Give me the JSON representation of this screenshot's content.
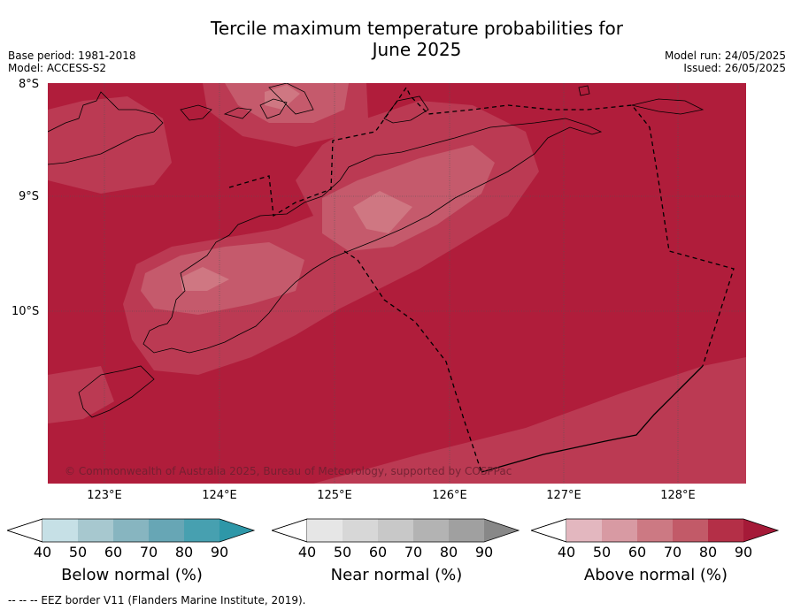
{
  "title_line1": "Tercile maximum temperature probabilities for",
  "title_line2": "June 2025",
  "base_period": "Base period: 1981-2018",
  "model": "Model: ACCESS-S2",
  "model_run": "Model run: 24/05/2025",
  "issued": "Issued: 26/05/2025",
  "lat_labels": [
    "8°S",
    "9°S",
    "10°S"
  ],
  "lon_labels": [
    "123°E",
    "124°E",
    "125°E",
    "126°E",
    "127°E",
    "128°E"
  ],
  "copyright": "© Commonwealth of Australia 2025, Bureau of Meteorology, supported by COSPPac",
  "colorbars": [
    {
      "title": "Below normal (%)",
      "ticks": [
        "40",
        "50",
        "60",
        "70",
        "80",
        "90"
      ],
      "colors": [
        "#ffffff",
        "#c6e0e6",
        "#a7c8cf",
        "#87b5c0",
        "#67a6b5",
        "#47a0b0",
        "#2e97a8"
      ]
    },
    {
      "title": "Near normal (%)",
      "ticks": [
        "40",
        "50",
        "60",
        "70",
        "80",
        "90"
      ],
      "colors": [
        "#ffffff",
        "#e6e6e6",
        "#d7d7d7",
        "#c8c8c8",
        "#b3b3b3",
        "#a0a0a0",
        "#888888"
      ]
    },
    {
      "title": "Above normal (%)",
      "ticks": [
        "40",
        "50",
        "60",
        "70",
        "80",
        "90"
      ],
      "colors": [
        "#ffffff",
        "#e3b7bf",
        "#d89aa3",
        "#cc7983",
        "#c25a68",
        "#b42f47",
        "#a51a38"
      ]
    }
  ],
  "footnote": "--  --  -- EEZ border V11 (Flanders Marine Institute, 2019).",
  "map_colors": {
    "above_90": "#b01d3b",
    "above_80": "#bb3a53",
    "above_70": "#c55a6c",
    "above_60": "#cf7782",
    "gridline": "#555555",
    "coast": "#000000"
  }
}
